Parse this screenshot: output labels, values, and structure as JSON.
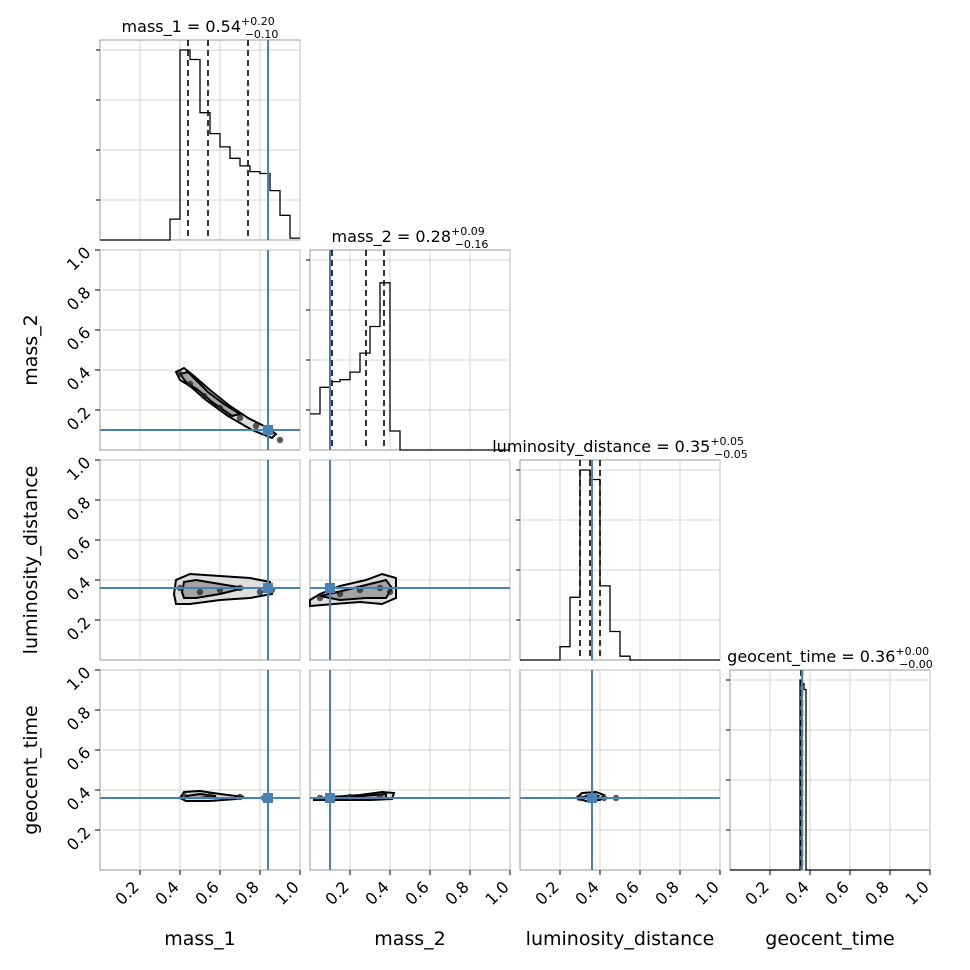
{
  "chart_data": {
    "type": "scatter",
    "subtype": "corner-plot",
    "parameters": [
      "mass_1",
      "mass_2",
      "luminosity_distance",
      "geocent_time"
    ],
    "axis_range": [
      0,
      1
    ],
    "tick_values": [
      0.2,
      0.4,
      0.6,
      0.8,
      1.0
    ],
    "tick_labels": [
      "0.2",
      "0.4",
      "0.6",
      "0.8",
      "1.0"
    ],
    "grid": true,
    "truth_color": "#4682b4",
    "truths": {
      "mass_1": 0.84,
      "mass_2": 0.1,
      "luminosity_distance": 0.36,
      "geocent_time": 0.36
    },
    "titles": [
      {
        "param": "mass_1",
        "label": "mass_1",
        "median": "0.54",
        "plus": "+0.20",
        "minus": "−0.10"
      },
      {
        "param": "mass_2",
        "label": "mass_2",
        "median": "0.28",
        "plus": "+0.09",
        "minus": "−0.16"
      },
      {
        "param": "luminosity_distance",
        "label": "luminosity_distance",
        "median": "0.35",
        "plus": "+0.05",
        "minus": "−0.05"
      },
      {
        "param": "geocent_time",
        "label": "geocent_time",
        "median": "0.36",
        "plus": "+0.00",
        "minus": "−0.00"
      }
    ],
    "quantiles": {
      "mass_1": [
        0.44,
        0.54,
        0.74
      ],
      "mass_2": [
        0.11,
        0.28,
        0.37
      ],
      "luminosity_distance": [
        0.3,
        0.35,
        0.4
      ],
      "geocent_time": [
        0.355,
        0.36,
        0.362
      ]
    },
    "histograms": {
      "mass_1": {
        "edges": [
          0.0,
          0.35,
          0.4,
          0.45,
          0.5,
          0.55,
          0.6,
          0.65,
          0.7,
          0.75,
          0.8,
          0.85,
          0.9,
          0.95,
          1.0
        ],
        "counts": [
          0,
          0.11,
          1.0,
          0.95,
          0.67,
          0.56,
          0.49,
          0.43,
          0.39,
          0.36,
          0.35,
          0.26,
          0.13,
          0.01
        ]
      },
      "mass_2": {
        "edges": [
          0.0,
          0.05,
          0.1,
          0.15,
          0.2,
          0.25,
          0.3,
          0.35,
          0.4,
          0.45,
          1.0
        ],
        "counts": [
          0.19,
          0.33,
          0.36,
          0.37,
          0.41,
          0.51,
          0.65,
          0.88,
          0.1,
          0
        ]
      },
      "luminosity_distance": {
        "edges": [
          0.0,
          0.2,
          0.25,
          0.3,
          0.35,
          0.4,
          0.45,
          0.5,
          0.55,
          1.0
        ],
        "counts": [
          0,
          0.07,
          0.33,
          1.0,
          0.95,
          0.39,
          0.15,
          0.02,
          0
        ]
      },
      "geocent_time": {
        "edges": [
          0.0,
          0.35,
          0.36,
          0.37,
          0.38,
          0.39,
          1.0
        ],
        "counts": [
          0,
          1.0,
          0.98,
          0.95,
          0.0,
          0
        ]
      }
    },
    "pair_densities": [
      {
        "x": "mass_1",
        "y": "mass_2",
        "contours": [
          [
            [
              0.38,
              0.39
            ],
            [
              0.42,
              0.41
            ],
            [
              0.47,
              0.37
            ],
            [
              0.55,
              0.3
            ],
            [
              0.65,
              0.22
            ],
            [
              0.74,
              0.16
            ],
            [
              0.82,
              0.12
            ],
            [
              0.88,
              0.08
            ],
            [
              0.86,
              0.06
            ],
            [
              0.76,
              0.1
            ],
            [
              0.64,
              0.17
            ],
            [
              0.53,
              0.25
            ],
            [
              0.45,
              0.32
            ],
            [
              0.4,
              0.35
            ]
          ],
          [
            [
              0.4,
              0.38
            ],
            [
              0.44,
              0.39
            ],
            [
              0.48,
              0.35
            ],
            [
              0.54,
              0.29
            ],
            [
              0.62,
              0.23
            ],
            [
              0.7,
              0.18
            ],
            [
              0.66,
              0.17
            ],
            [
              0.56,
              0.24
            ],
            [
              0.49,
              0.3
            ],
            [
              0.43,
              0.34
            ]
          ]
        ],
        "samples": [
          [
            0.4,
            0.38
          ],
          [
            0.45,
            0.33
          ],
          [
            0.52,
            0.27
          ],
          [
            0.6,
            0.21
          ],
          [
            0.7,
            0.16
          ],
          [
            0.78,
            0.12
          ],
          [
            0.85,
            0.09
          ],
          [
            0.9,
            0.05
          ]
        ]
      },
      {
        "x": "mass_1",
        "y": "luminosity_distance",
        "contours": [
          [
            [
              0.37,
              0.33
            ],
            [
              0.38,
              0.4
            ],
            [
              0.45,
              0.43
            ],
            [
              0.6,
              0.42
            ],
            [
              0.75,
              0.41
            ],
            [
              0.85,
              0.39
            ],
            [
              0.86,
              0.33
            ],
            [
              0.75,
              0.31
            ],
            [
              0.6,
              0.3
            ],
            [
              0.45,
              0.28
            ],
            [
              0.38,
              0.28
            ]
          ],
          [
            [
              0.41,
              0.34
            ],
            [
              0.42,
              0.39
            ],
            [
              0.48,
              0.4
            ],
            [
              0.6,
              0.38
            ],
            [
              0.72,
              0.36
            ],
            [
              0.6,
              0.33
            ],
            [
              0.48,
              0.31
            ],
            [
              0.42,
              0.31
            ]
          ]
        ],
        "samples": [
          [
            0.4,
            0.36
          ],
          [
            0.5,
            0.34
          ],
          [
            0.6,
            0.35
          ],
          [
            0.7,
            0.36
          ],
          [
            0.8,
            0.34
          ],
          [
            0.86,
            0.35
          ]
        ]
      },
      {
        "x": "mass_2",
        "y": "luminosity_distance",
        "contours": [
          [
            [
              0.0,
              0.3
            ],
            [
              0.05,
              0.33
            ],
            [
              0.15,
              0.37
            ],
            [
              0.28,
              0.4
            ],
            [
              0.36,
              0.43
            ],
            [
              0.43,
              0.41
            ],
            [
              0.43,
              0.31
            ],
            [
              0.36,
              0.28
            ],
            [
              0.25,
              0.29
            ],
            [
              0.12,
              0.28
            ],
            [
              0.0,
              0.27
            ]
          ],
          [
            [
              0.05,
              0.32
            ],
            [
              0.18,
              0.35
            ],
            [
              0.3,
              0.38
            ],
            [
              0.38,
              0.4
            ],
            [
              0.41,
              0.36
            ],
            [
              0.38,
              0.31
            ],
            [
              0.28,
              0.31
            ],
            [
              0.15,
              0.3
            ]
          ]
        ],
        "samples": [
          [
            0.05,
            0.31
          ],
          [
            0.15,
            0.33
          ],
          [
            0.25,
            0.35
          ],
          [
            0.35,
            0.36
          ],
          [
            0.4,
            0.34
          ]
        ]
      },
      {
        "x": "mass_1",
        "y": "geocent_time",
        "contours": [
          [
            [
              0.4,
              0.36
            ],
            [
              0.42,
              0.39
            ],
            [
              0.5,
              0.395
            ],
            [
              0.6,
              0.38
            ],
            [
              0.72,
              0.365
            ],
            [
              0.68,
              0.355
            ],
            [
              0.55,
              0.345
            ],
            [
              0.43,
              0.345
            ]
          ],
          [
            [
              0.43,
              0.37
            ],
            [
              0.5,
              0.38
            ],
            [
              0.58,
              0.37
            ],
            [
              0.5,
              0.36
            ],
            [
              0.44,
              0.36
            ]
          ]
        ],
        "samples": [
          [
            0.42,
            0.37
          ],
          [
            0.55,
            0.37
          ],
          [
            0.7,
            0.365
          ],
          [
            0.82,
            0.36
          ]
        ]
      },
      {
        "x": "mass_2",
        "y": "geocent_time",
        "contours": [
          [
            [
              0.02,
              0.355
            ],
            [
              0.1,
              0.365
            ],
            [
              0.25,
              0.375
            ],
            [
              0.36,
              0.39
            ],
            [
              0.42,
              0.385
            ],
            [
              0.41,
              0.355
            ],
            [
              0.3,
              0.35
            ],
            [
              0.15,
              0.35
            ],
            [
              0.02,
              0.35
            ]
          ],
          [
            [
              0.2,
              0.365
            ],
            [
              0.32,
              0.375
            ],
            [
              0.38,
              0.38
            ],
            [
              0.38,
              0.36
            ],
            [
              0.28,
              0.36
            ]
          ]
        ],
        "samples": [
          [
            0.05,
            0.36
          ],
          [
            0.2,
            0.365
          ],
          [
            0.35,
            0.37
          ]
        ]
      },
      {
        "x": "luminosity_distance",
        "y": "geocent_time",
        "contours": [
          [
            [
              0.28,
              0.36
            ],
            [
              0.31,
              0.385
            ],
            [
              0.38,
              0.39
            ],
            [
              0.42,
              0.375
            ],
            [
              0.4,
              0.35
            ],
            [
              0.33,
              0.345
            ]
          ],
          [
            [
              0.32,
              0.365
            ],
            [
              0.35,
              0.38
            ],
            [
              0.39,
              0.37
            ],
            [
              0.36,
              0.355
            ]
          ]
        ],
        "samples": [
          [
            0.3,
            0.36
          ],
          [
            0.36,
            0.37
          ],
          [
            0.42,
            0.36
          ],
          [
            0.48,
            0.36
          ]
        ]
      }
    ]
  }
}
